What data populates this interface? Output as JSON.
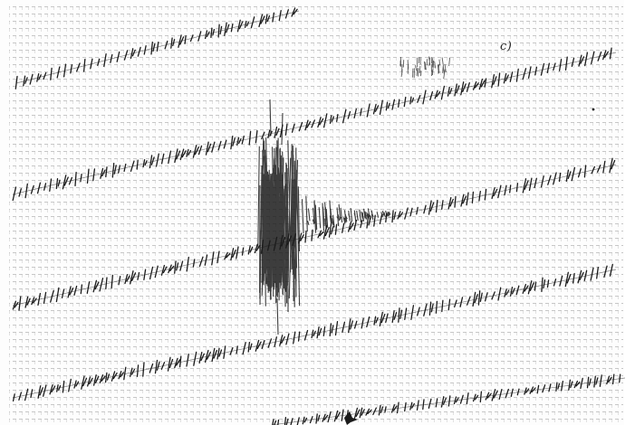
{
  "figure": {
    "panel_label": "c)",
    "colors": {
      "paper": "#fdfdfd",
      "grid": "#bdbdbd",
      "ink": "#1b1b1b"
    }
  }
}
